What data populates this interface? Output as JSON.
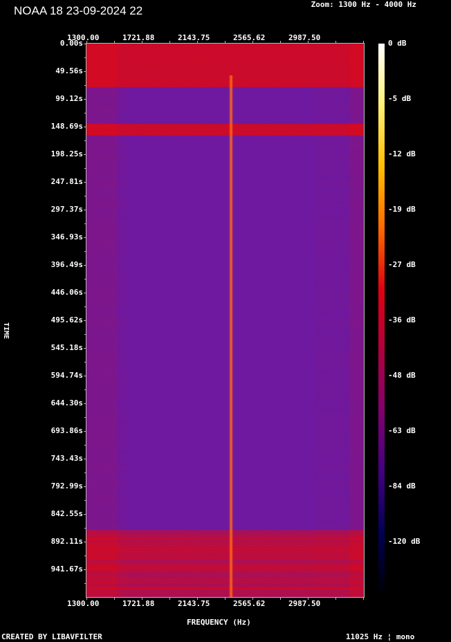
{
  "title": "NOAA 18 23-09-2024 22",
  "zoom_label": "Zoom: 1300 Hz - 4000 Hz",
  "footer_left": "CREATED BY LIBAVFILTER",
  "footer_right": "11025 Hz ¦ mono",
  "chart_data": {
    "type": "heatmap",
    "xlabel": "FREQUENCY (Hz)",
    "ylabel": "TIME",
    "x_tick_labels": [
      "1300.00",
      "1721.88",
      "2143.75",
      "2565.62",
      "2987.50"
    ],
    "x_ticks": [
      1300.0,
      1721.88,
      2143.75,
      2565.62,
      2987.5
    ],
    "xlim": [
      1300,
      3415
    ],
    "y_tick_labels": [
      "0.00s",
      "49.56s",
      "99.12s",
      "148.69s",
      "198.25s",
      "247.81s",
      "297.37s",
      "346.93s",
      "396.49s",
      "446.06s",
      "495.62s",
      "545.18s",
      "594.74s",
      "644.30s",
      "693.86s",
      "743.43s",
      "792.99s",
      "842.55s",
      "892.11s",
      "941.67s"
    ],
    "y_ticks": [
      0,
      49.56,
      99.12,
      148.69,
      198.25,
      247.81,
      297.37,
      346.93,
      396.49,
      446.06,
      495.62,
      545.18,
      594.74,
      644.3,
      693.86,
      743.43,
      792.99,
      842.55,
      892.11,
      941.67
    ],
    "ylim": [
      0,
      991.2
    ],
    "colorbar_labels": [
      "0 dB",
      "-5 dB",
      "-12 dB",
      "-19 dB",
      "-27 dB",
      "-36 dB",
      "-48 dB",
      "-63 dB",
      "-84 dB",
      "-120 dB"
    ],
    "colormap": [
      "#ffffff",
      "#fff176",
      "#ffc000",
      "#ff6a00",
      "#e00010",
      "#b00040",
      "#800070",
      "#400080",
      "#000050",
      "#000000"
    ],
    "features": {
      "carrier_tone_hz": 2400,
      "strong_signal_time_ranges_s": [
        [
          0,
          77
        ],
        [
          143,
          164
        ],
        [
          870,
          991.2
        ]
      ]
    }
  }
}
